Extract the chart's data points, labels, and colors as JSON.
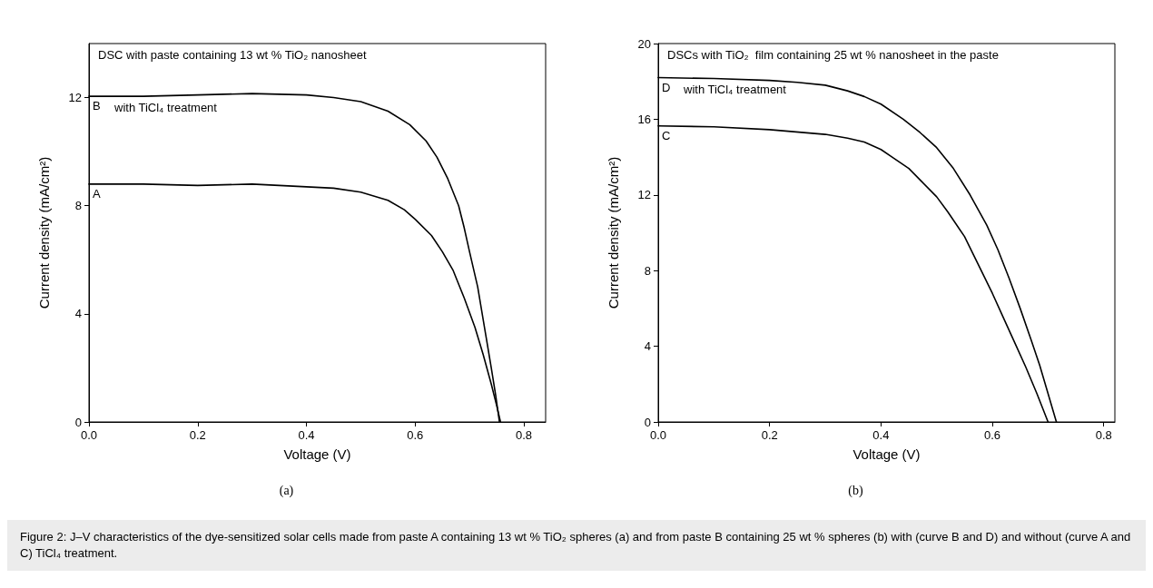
{
  "chart_data": [
    {
      "type": "line",
      "title": "DSC with paste containing 13 wt % TiO₂ nanosheet",
      "subtitle": "(a)",
      "xlabel": "Voltage (V)",
      "ylabel": "Current density (mA/cm²)",
      "xlim": [
        0,
        0.84
      ],
      "ylim": [
        0,
        14
      ],
      "xticks": [
        {
          "value": 0,
          "label": "0.0"
        },
        0.2,
        0.4,
        0.6,
        0.8
      ],
      "yticks": [
        0,
        4,
        8,
        12
      ],
      "grid": false,
      "legend": false,
      "marker": "none",
      "line_style": "solid",
      "annotations": [
        "with TiCl₄ treatment"
      ],
      "series": [
        {
          "name": "B",
          "color": "#000000",
          "x": [
            0,
            0.1,
            0.2,
            0.3,
            0.4,
            0.45,
            0.5,
            0.55,
            0.59,
            0.62,
            0.64,
            0.66,
            0.68,
            0.69,
            0.7,
            0.715,
            0.73,
            0.74,
            0.748,
            0.755
          ],
          "values": [
            12.05,
            12.05,
            12.1,
            12.15,
            12.1,
            12.0,
            11.85,
            11.5,
            11.0,
            10.4,
            9.8,
            9.0,
            8.0,
            7.2,
            6.3,
            5.0,
            3.2,
            2.0,
            1.0,
            0
          ]
        },
        {
          "name": "A",
          "color": "#000000",
          "x": [
            0,
            0.1,
            0.2,
            0.3,
            0.4,
            0.45,
            0.5,
            0.55,
            0.58,
            0.6,
            0.63,
            0.65,
            0.67,
            0.69,
            0.71,
            0.725,
            0.74,
            0.75,
            0.757
          ],
          "values": [
            8.8,
            8.8,
            8.75,
            8.8,
            8.7,
            8.65,
            8.5,
            8.2,
            7.85,
            7.5,
            6.9,
            6.3,
            5.6,
            4.6,
            3.5,
            2.5,
            1.4,
            0.6,
            0
          ]
        }
      ]
    },
    {
      "type": "line",
      "title": "DSCs with TiO₂  film containing 25 wt % nanosheet in the paste",
      "subtitle": "(b)",
      "xlabel": "Voltage (V)",
      "ylabel": "Current density (mA/cm²)",
      "xlim": [
        0,
        0.82
      ],
      "ylim": [
        0,
        20
      ],
      "xticks": [
        {
          "value": 0,
          "label": "0.0"
        },
        0.2,
        0.4,
        0.6,
        0.8
      ],
      "yticks": [
        0,
        4,
        8,
        12,
        16,
        20
      ],
      "grid": false,
      "legend": false,
      "marker": "none",
      "line_style": "solid",
      "annotations": [
        "with TiCl₄ treatment",
        "Figure 2: J–V characteristics of the dye-sensitized solar cells made from paste A containing 13 wt % TiO₂ spheres (a) and from paste B containing 25 wt % spheres (b) with (curve B and D) and without (curve A and C) TiCl₄ treatment."
      ],
      "series": [
        {
          "name": "D",
          "color": "#000000",
          "x": [
            0,
            0.1,
            0.2,
            0.25,
            0.3,
            0.34,
            0.37,
            0.4,
            0.44,
            0.47,
            0.5,
            0.53,
            0.56,
            0.59,
            0.61,
            0.63,
            0.65,
            0.67,
            0.685,
            0.7,
            0.715
          ],
          "values": [
            18.2,
            18.15,
            18.05,
            17.95,
            17.8,
            17.5,
            17.2,
            16.8,
            16.0,
            15.3,
            14.5,
            13.4,
            12.0,
            10.4,
            9.1,
            7.6,
            6.0,
            4.3,
            3.0,
            1.5,
            0
          ]
        },
        {
          "name": "C",
          "color": "#000000",
          "x": [
            0,
            0.1,
            0.2,
            0.3,
            0.34,
            0.37,
            0.4,
            0.42,
            0.45,
            0.47,
            0.5,
            0.52,
            0.55,
            0.57,
            0.6,
            0.62,
            0.64,
            0.66,
            0.68,
            0.7
          ],
          "values": [
            15.65,
            15.6,
            15.45,
            15.2,
            15.0,
            14.8,
            14.4,
            14.0,
            13.4,
            12.8,
            11.9,
            11.1,
            9.8,
            8.6,
            6.8,
            5.5,
            4.2,
            2.9,
            1.5,
            0
          ]
        }
      ]
    }
  ]
}
